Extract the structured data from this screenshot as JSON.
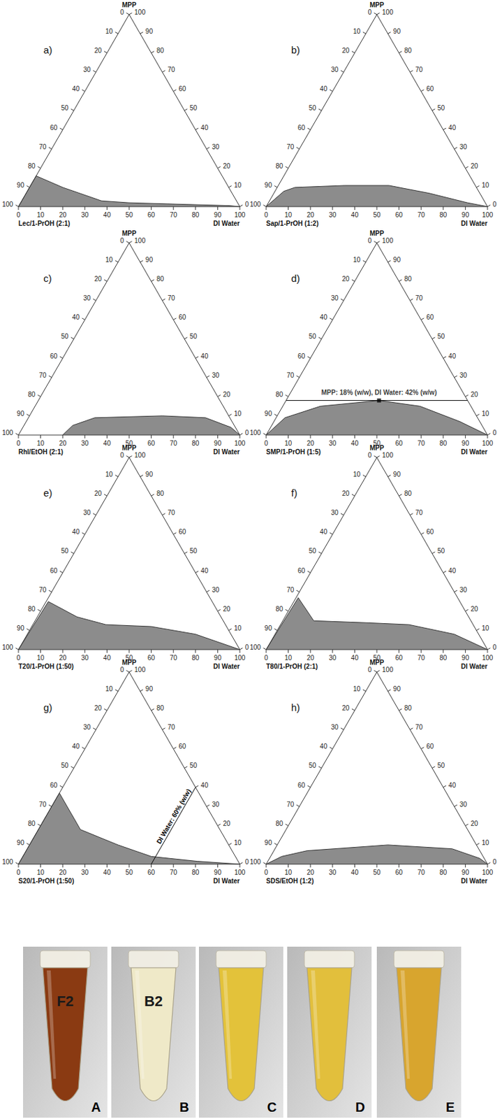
{
  "chart_data": [
    {
      "type": "ternary",
      "title": "a)",
      "top_label": "MPP",
      "left_label": "Lec/1-PrOH (2:1)",
      "right_label": "DI Water",
      "lim": [
        0,
        100
      ],
      "ticks": [
        0,
        10,
        20,
        30,
        40,
        50,
        60,
        70,
        80,
        90,
        100
      ],
      "color": "#8c8c8c",
      "boundary": {
        "water": [
          0,
          0,
          15,
          36,
          49,
          95,
          100
        ],
        "mpp": [
          0,
          16,
          10,
          3,
          2,
          0.5,
          0
        ]
      }
    },
    {
      "type": "ternary",
      "title": "b)",
      "top_label": "MPP",
      "left_label": "Sap/1-PrOH (1:2)",
      "right_label": "DI Water",
      "lim": [
        0,
        100
      ],
      "ticks": [
        0,
        10,
        20,
        30,
        40,
        50,
        60,
        70,
        80,
        90,
        100
      ],
      "color": "#8c8c8c",
      "boundary": {
        "water": [
          0,
          4,
          8,
          30,
          50,
          70,
          90,
          100
        ],
        "mpp": [
          0,
          8,
          10,
          11,
          11,
          7,
          2,
          0
        ]
      }
    },
    {
      "type": "ternary",
      "title": "c)",
      "top_label": "MPP",
      "left_label": "Rhl/EtOH (2:1)",
      "right_label": "DI Water",
      "lim": [
        0,
        100
      ],
      "ticks": [
        0,
        10,
        20,
        30,
        40,
        50,
        60,
        70,
        80,
        90,
        100
      ],
      "color": "#8c8c8c",
      "boundary": {
        "water": [
          20,
          22,
          30,
          60,
          80,
          94,
          100
        ],
        "mpp": [
          0,
          5,
          9,
          10,
          9,
          4,
          0
        ]
      }
    },
    {
      "type": "ternary",
      "title": "d)",
      "top_label": "MPP",
      "left_label": "SMP/1-PrOH (1:5)",
      "right_label": "DI Water",
      "lim": [
        0,
        100
      ],
      "ticks": [
        0,
        10,
        20,
        30,
        40,
        50,
        60,
        70,
        80,
        90,
        100
      ],
      "color": "#8c8c8c",
      "boundary": {
        "water": [
          0,
          4,
          17,
          42,
          62,
          84,
          100
        ],
        "mpp": [
          0,
          9,
          15,
          18,
          15,
          7,
          0
        ]
      },
      "annotation": {
        "text": "MPP: 18% (w/w), DI Water: 42% (w/w)",
        "water": 42,
        "mpp": 18,
        "marker": "square"
      }
    },
    {
      "type": "ternary",
      "title": "e)",
      "top_label": "MPP",
      "left_label": "T20/1-PrOH (1:50)",
      "right_label": "DI Water",
      "lim": [
        0,
        100
      ],
      "ticks": [
        0,
        10,
        20,
        30,
        40,
        50,
        60,
        70,
        80,
        90,
        100
      ],
      "color": "#8c8c8c",
      "boundary": {
        "water": [
          0,
          1,
          18,
          33,
          54,
          76,
          100
        ],
        "mpp": [
          0,
          25,
          17,
          13,
          12,
          8,
          0
        ]
      }
    },
    {
      "type": "ternary",
      "title": "f)",
      "top_label": "MPP",
      "left_label": "T80/1-PrOH (2:1)",
      "right_label": "DI Water",
      "lim": [
        0,
        100
      ],
      "ticks": [
        0,
        10,
        20,
        30,
        40,
        50,
        60,
        70,
        80,
        90,
        100
      ],
      "color": "#8c8c8c",
      "boundary": {
        "water": [
          0,
          1,
          14,
          38,
          58,
          81,
          100
        ],
        "mpp": [
          0,
          27,
          15,
          14,
          13,
          8,
          0
        ]
      }
    },
    {
      "type": "ternary",
      "title": "g)",
      "top_label": "MPP",
      "left_label": "S20/1-PrOH (1:50)",
      "right_label": "DI Water",
      "lim": [
        0,
        100
      ],
      "ticks": [
        0,
        10,
        20,
        30,
        40,
        50,
        60,
        70,
        80,
        90,
        100
      ],
      "color": "#8c8c8c",
      "boundary": {
        "water": [
          0,
          0,
          19,
          40,
          58,
          80,
          100
        ],
        "mpp": [
          0,
          37,
          18,
          10,
          4,
          1.5,
          0
        ]
      },
      "annotation": {
        "text": "DI Water: 60% (w/w)",
        "water": 60
      }
    },
    {
      "type": "ternary",
      "title": "h)",
      "top_label": "MPP",
      "left_label": "SDS/EtOH (1:2)",
      "right_label": "DI Water",
      "lim": [
        0,
        100
      ],
      "ticks": [
        0,
        10,
        20,
        30,
        40,
        50,
        60,
        70,
        80,
        90,
        100
      ],
      "color": "#8c8c8c",
      "boundary": {
        "water": [
          0,
          5,
          15,
          50,
          80,
          95,
          100
        ],
        "mpp": [
          0,
          4,
          7,
          10,
          8,
          3,
          0
        ]
      }
    }
  ],
  "photos": {
    "labels": [
      "A",
      "B",
      "C",
      "D",
      "E"
    ],
    "colors": [
      "#8a3a12",
      "#efe9c8",
      "#e3c23a",
      "#e2bf3c",
      "#d8a52e"
    ],
    "tube_texts": [
      "F2",
      "B2",
      null,
      null,
      null
    ]
  }
}
